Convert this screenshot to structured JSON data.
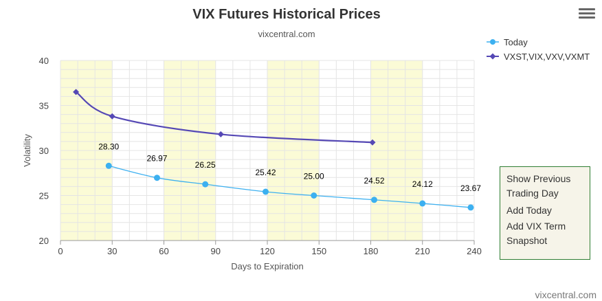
{
  "chart_data": {
    "type": "line",
    "title": "VIX Futures Historical Prices",
    "subtitle": "vixcentral.com",
    "xlabel": "Days to Expiration",
    "ylabel": "Volatility",
    "xlim": [
      0,
      240
    ],
    "ylim": [
      20,
      40
    ],
    "x_ticks": [
      0,
      30,
      60,
      90,
      120,
      150,
      180,
      210,
      240
    ],
    "y_ticks": [
      20,
      25,
      30,
      35,
      40
    ],
    "shaded_x_bands": [
      [
        0,
        30
      ],
      [
        60,
        90
      ],
      [
        120,
        150
      ],
      [
        180,
        210
      ]
    ],
    "grid": true,
    "legend_position": "top-right",
    "series": [
      {
        "name": "Today",
        "color": "#3cb0f0",
        "marker": "circle",
        "x": [
          28,
          56,
          84,
          119,
          147,
          182,
          210,
          238
        ],
        "y": [
          28.3,
          26.97,
          26.25,
          25.42,
          25.0,
          24.52,
          24.12,
          23.67
        ],
        "data_labels": [
          "28.30",
          "26.97",
          "26.25",
          "25.42",
          "25.00",
          "24.52",
          "24.12",
          "23.67"
        ]
      },
      {
        "name": "VXST,VIX,VXV,VXMT",
        "color": "#5548b5",
        "marker": "diamond",
        "x": [
          9,
          30,
          93,
          181
        ],
        "y": [
          36.5,
          33.8,
          31.8,
          30.9
        ]
      }
    ],
    "credit": "vixcentral.com"
  },
  "menu": {
    "items": [
      "Show Previous Trading Day",
      "Add Today",
      "Add VIX Term Snapshot"
    ]
  },
  "icons": {
    "context_menu": "hamburger-menu-icon"
  }
}
